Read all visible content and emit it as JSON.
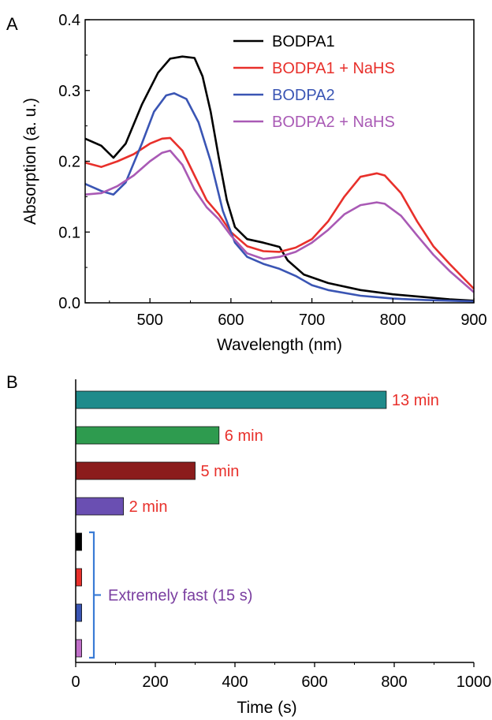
{
  "chart_data": [
    {
      "panel": "A",
      "type": "line",
      "xlabel": "Wavelength (nm)",
      "ylabel": "Absorption (a. u.)",
      "xlim": [
        420,
        900
      ],
      "ylim": [
        0,
        0.4
      ],
      "xticks": [
        500,
        600,
        700,
        800,
        900
      ],
      "xtick_labels": [
        "500",
        "600",
        "700",
        "800",
        "900"
      ],
      "yticks": [
        0,
        0.1,
        0.2,
        0.3,
        0.4
      ],
      "ytick_labels": [
        "0.0",
        "0.1",
        "0.2",
        "0.3",
        "0.4"
      ],
      "legend_position": "top-right",
      "series": [
        {
          "name": "BODPA1",
          "color": "#000000",
          "x": [
            420,
            440,
            455,
            470,
            490,
            510,
            525,
            540,
            555,
            565,
            575,
            585,
            595,
            605,
            620,
            640,
            660,
            670,
            690,
            720,
            760,
            800,
            840,
            870,
            900
          ],
          "y": [
            0.232,
            0.222,
            0.205,
            0.225,
            0.28,
            0.325,
            0.345,
            0.348,
            0.346,
            0.32,
            0.27,
            0.205,
            0.145,
            0.107,
            0.09,
            0.085,
            0.079,
            0.06,
            0.04,
            0.028,
            0.018,
            0.012,
            0.008,
            0.005,
            0.003
          ]
        },
        {
          "name": "BODPA1 + NaHS",
          "color": "#e8302b",
          "x": [
            420,
            440,
            460,
            480,
            500,
            515,
            525,
            540,
            555,
            570,
            585,
            600,
            620,
            640,
            660,
            680,
            700,
            720,
            740,
            760,
            780,
            790,
            810,
            830,
            850,
            870,
            900
          ],
          "y": [
            0.198,
            0.192,
            0.2,
            0.21,
            0.225,
            0.232,
            0.233,
            0.215,
            0.18,
            0.145,
            0.125,
            0.1,
            0.08,
            0.073,
            0.072,
            0.078,
            0.09,
            0.115,
            0.15,
            0.178,
            0.183,
            0.18,
            0.155,
            0.115,
            0.08,
            0.055,
            0.02
          ]
        },
        {
          "name": "BODPA2",
          "color": "#3a55b4",
          "x": [
            420,
            440,
            455,
            470,
            490,
            505,
            520,
            530,
            545,
            560,
            575,
            590,
            605,
            620,
            640,
            660,
            680,
            700,
            720,
            760,
            800,
            840,
            870,
            900
          ],
          "y": [
            0.168,
            0.158,
            0.153,
            0.17,
            0.225,
            0.27,
            0.293,
            0.296,
            0.288,
            0.255,
            0.2,
            0.13,
            0.085,
            0.065,
            0.055,
            0.048,
            0.038,
            0.025,
            0.018,
            0.01,
            0.006,
            0.004,
            0.003,
            0.002
          ]
        },
        {
          "name": "BODPA2 + NaHS",
          "color": "#a95ab5",
          "x": [
            420,
            440,
            460,
            480,
            500,
            515,
            525,
            540,
            555,
            570,
            585,
            600,
            620,
            640,
            660,
            680,
            700,
            720,
            740,
            760,
            780,
            790,
            810,
            830,
            850,
            870,
            900
          ],
          "y": [
            0.153,
            0.155,
            0.165,
            0.18,
            0.2,
            0.212,
            0.215,
            0.195,
            0.16,
            0.135,
            0.118,
            0.095,
            0.07,
            0.062,
            0.065,
            0.072,
            0.085,
            0.103,
            0.125,
            0.138,
            0.142,
            0.14,
            0.123,
            0.095,
            0.068,
            0.045,
            0.015
          ]
        }
      ]
    },
    {
      "panel": "B",
      "type": "bar",
      "orientation": "horizontal",
      "xlabel": "Time (s)",
      "xlim": [
        0,
        1000
      ],
      "xticks": [
        0,
        200,
        400,
        600,
        800,
        1000
      ],
      "xtick_labels": [
        "0",
        "200",
        "400",
        "600",
        "800",
        "1000"
      ],
      "values": [
        780,
        360,
        300,
        120,
        15,
        15,
        15,
        15
      ],
      "colors": [
        "#1f8b8b",
        "#2e9b4f",
        "#8b1c1c",
        "#6a4fb2",
        "#000000",
        "#e8302b",
        "#3a55b4",
        "#c06fc8"
      ],
      "labels": [
        "13 min",
        "6 min",
        "5 min",
        "2 min",
        "",
        "",
        "",
        ""
      ],
      "label_color": "#e8302b",
      "annotation": {
        "text": "Extremely fast (15 s)",
        "text_color": "#7a3ea0",
        "bracket_color": "#3a7bd5"
      }
    }
  ],
  "panel_labels": [
    "A",
    "B"
  ]
}
